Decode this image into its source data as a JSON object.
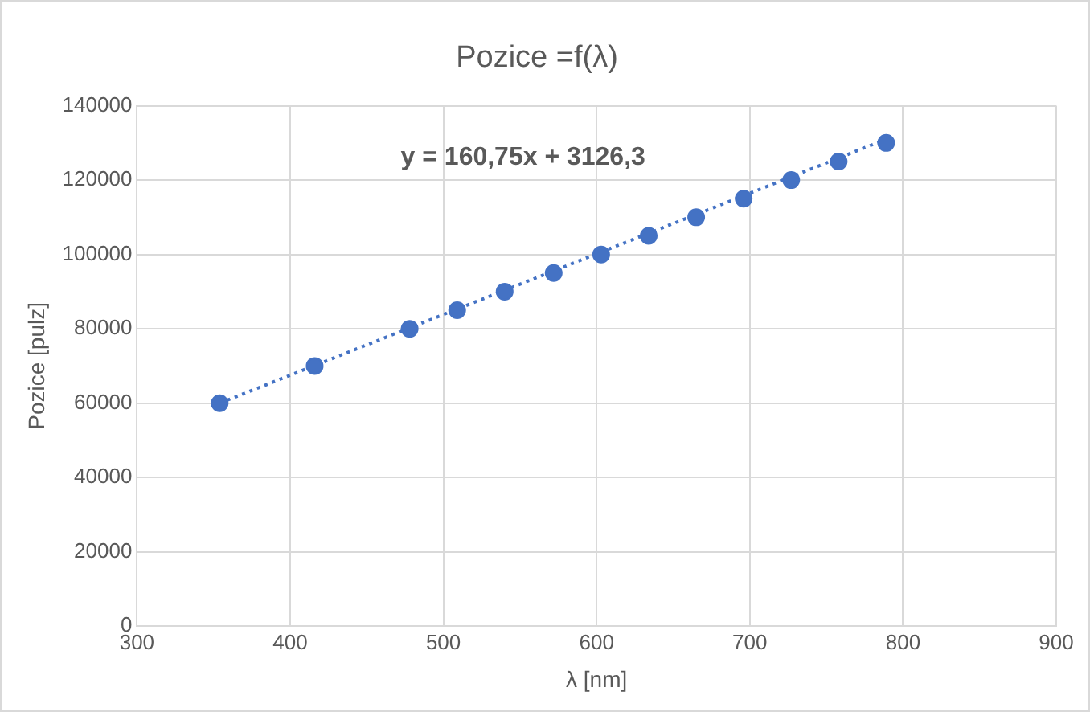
{
  "chart_data": {
    "type": "scatter",
    "title": "Pozice =f(λ)",
    "xlabel": "λ [nm]",
    "ylabel": "Pozice [pulz]",
    "xlim": [
      300,
      900
    ],
    "xticks": [
      300,
      400,
      500,
      600,
      700,
      800,
      900
    ],
    "ylim": [
      0,
      140000
    ],
    "yticks": [
      0,
      20000,
      40000,
      60000,
      80000,
      100000,
      120000,
      140000
    ],
    "grid": true,
    "legend": false,
    "marker": "circle",
    "series": [
      {
        "color": "#4472c4",
        "x": [
          354,
          416,
          478,
          509,
          540,
          572,
          603,
          634,
          665,
          696,
          727,
          758,
          789
        ],
        "values": [
          60000,
          70000,
          80000,
          85000,
          90000,
          95000,
          100000,
          105000,
          110000,
          115000,
          120000,
          125000,
          130000
        ]
      },
      {
        "type": "line",
        "color": "#4472c4",
        "line_style": "dotted",
        "marker": "none",
        "x": [
          354,
          789
        ],
        "values": [
          60000,
          131000
        ]
      }
    ],
    "annotations": [
      "y = 160,75x + 3126,3"
    ]
  }
}
